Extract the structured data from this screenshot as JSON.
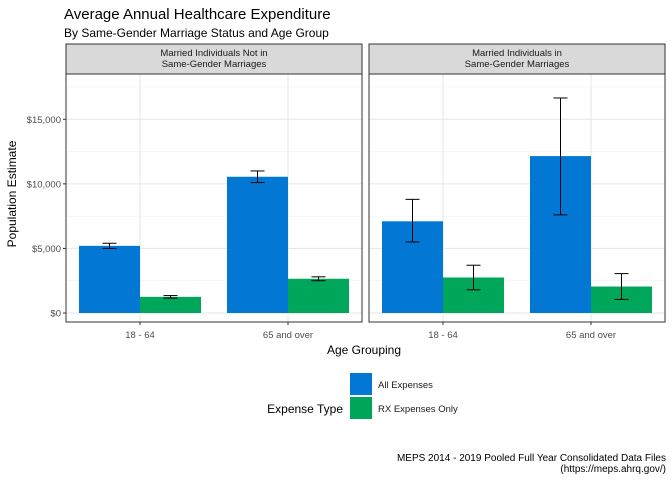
{
  "chart_data": {
    "type": "bar",
    "title": "Average Annual Healthcare Expenditure",
    "subtitle": "By Same-Gender Marriage Status and Age Group",
    "xlabel": "Age Grouping",
    "ylabel": "Population Estimate",
    "ylim": [
      0,
      17500
    ],
    "yticks": [
      0,
      5000,
      10000,
      15000
    ],
    "ytick_labels": [
      "$0",
      "$5,000",
      "$10,000",
      "$15,000"
    ],
    "grid": true,
    "legend": {
      "title": "Expense Type",
      "position": "bottom",
      "entries": [
        {
          "name": "All Expenses",
          "color": "#0277D4"
        },
        {
          "name": "RX Expenses Only",
          "color": "#00A65A"
        }
      ]
    },
    "categories": [
      "18 - 64",
      "65 and over"
    ],
    "panels": [
      {
        "strip": [
          "Married Individuals Not in",
          "Same-Gender Marriages"
        ],
        "series": [
          {
            "name": "All Expenses",
            "values": [
              5200,
              10550
            ],
            "lower": [
              5000,
              10100
            ],
            "upper": [
              5400,
              11000
            ]
          },
          {
            "name": "RX Expenses Only",
            "values": [
              1250,
              2650
            ],
            "lower": [
              1150,
              2500
            ],
            "upper": [
              1350,
              2800
            ]
          }
        ]
      },
      {
        "strip": [
          "Married Individuals in",
          "Same-Gender Marriages"
        ],
        "series": [
          {
            "name": "All Expenses",
            "values": [
              7100,
              12150
            ],
            "lower": [
              5500,
              7600
            ],
            "upper": [
              8800,
              16650
            ]
          },
          {
            "name": "RX Expenses Only",
            "values": [
              2750,
              2050
            ],
            "lower": [
              1800,
              1050
            ],
            "upper": [
              3700,
              3050
            ]
          }
        ]
      }
    ],
    "caption": [
      "MEPS 2014 - 2019 Pooled Full Year Consolidated Data Files",
      "(https://meps.ahrq.gov/)"
    ]
  }
}
